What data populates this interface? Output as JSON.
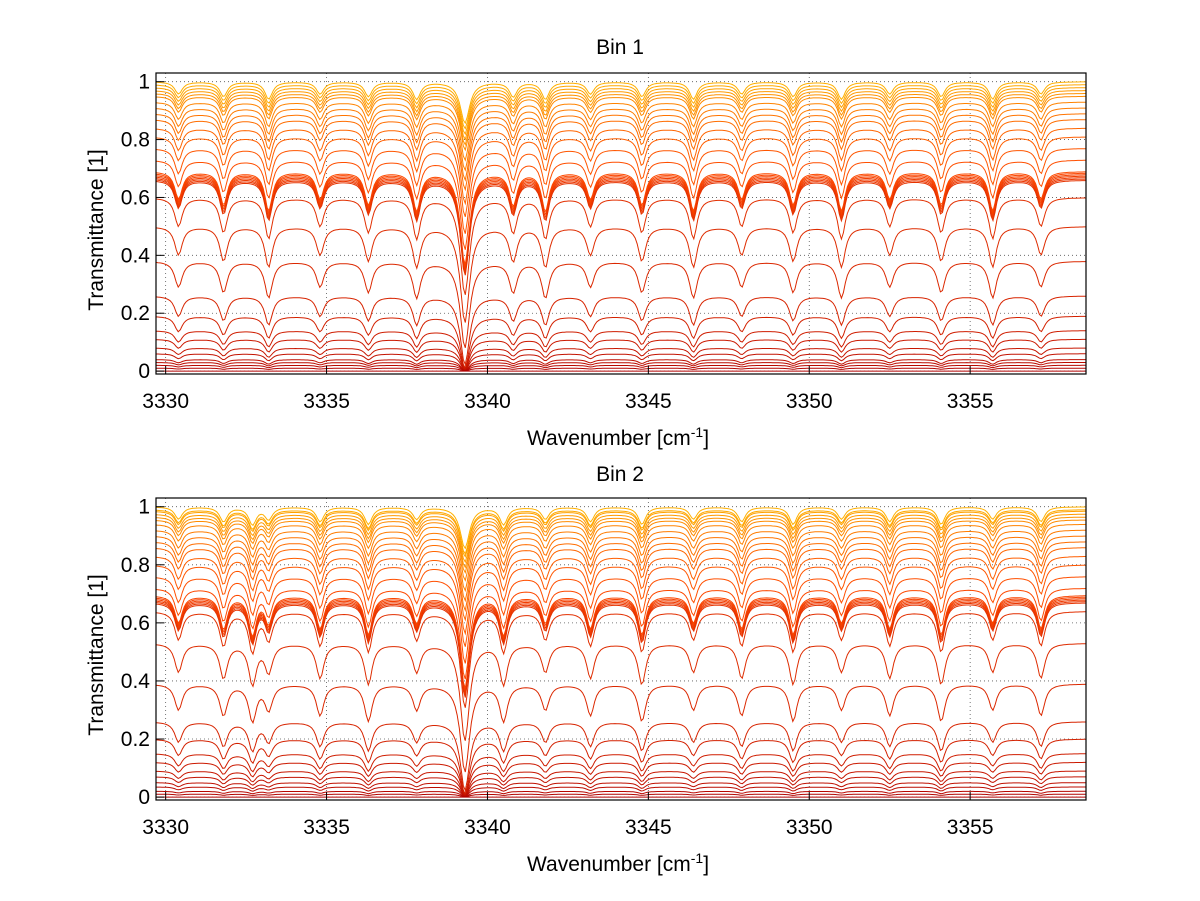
{
  "chart_data": [
    {
      "type": "line",
      "title": "Bin 1",
      "xlabel": "Wavenumber [cm",
      "xlabel_sup": "-1",
      "xlabel_end": "]",
      "ylabel": "Transmittance [1]",
      "xlim": [
        3329.7,
        3358.6
      ],
      "ylim": [
        -0.01,
        1.03
      ],
      "xticks": [
        3330,
        3335,
        3340,
        3345,
        3350,
        3355
      ],
      "yticks": [
        0,
        0.2,
        0.4,
        0.6,
        0.8,
        1
      ],
      "xtick_labels": [
        "3330",
        "3335",
        "3340",
        "3345",
        "3350",
        "3355"
      ],
      "ytick_labels": [
        "0",
        "0.2",
        "0.4",
        "0.6",
        "0.8",
        "1"
      ],
      "grid": true,
      "line_centers": [
        3330.4,
        3331.8,
        3333.2,
        3334.8,
        3336.3,
        3337.8,
        3339.3,
        3340.8,
        3341.8,
        3343.2,
        3344.8,
        3346.4,
        3347.9,
        3349.5,
        3351.0,
        3352.5,
        3354.1,
        3355.7,
        3357.2
      ],
      "series_baselines": [
        1.0,
        0.99,
        0.98,
        0.97,
        0.96,
        0.95,
        0.93,
        0.91,
        0.89,
        0.87,
        0.84,
        0.81,
        0.77,
        0.73,
        0.69,
        0.685,
        0.68,
        0.675,
        0.67,
        0.665,
        0.66,
        0.6,
        0.5,
        0.38,
        0.26,
        0.19,
        0.14,
        0.11,
        0.08,
        0.06,
        0.04,
        0.03,
        0.02,
        0.01,
        0.0
      ]
    },
    {
      "type": "line",
      "title": "Bin 2",
      "xlabel": "Wavenumber [cm",
      "xlabel_sup": "-1",
      "xlabel_end": "]",
      "ylabel": "Transmittance [1]",
      "xlim": [
        3329.7,
        3358.6
      ],
      "ylim": [
        -0.01,
        1.03
      ],
      "xticks": [
        3330,
        3335,
        3340,
        3345,
        3350,
        3355
      ],
      "yticks": [
        0,
        0.2,
        0.4,
        0.6,
        0.8,
        1
      ],
      "xtick_labels": [
        "3330",
        "3335",
        "3340",
        "3345",
        "3350",
        "3355"
      ],
      "ytick_labels": [
        "0",
        "0.2",
        "0.4",
        "0.6",
        "0.8",
        "1"
      ],
      "grid": true,
      "line_centers": [
        3330.4,
        3331.8,
        3332.7,
        3333.2,
        3334.8,
        3336.3,
        3337.8,
        3339.3,
        3340.5,
        3341.8,
        3343.2,
        3344.8,
        3346.4,
        3347.9,
        3349.5,
        3351.0,
        3352.5,
        3354.1,
        3355.7,
        3357.2
      ],
      "series_baselines": [
        1.0,
        0.99,
        0.985,
        0.975,
        0.965,
        0.955,
        0.94,
        0.92,
        0.9,
        0.88,
        0.86,
        0.83,
        0.8,
        0.76,
        0.72,
        0.695,
        0.69,
        0.685,
        0.68,
        0.675,
        0.67,
        0.64,
        0.53,
        0.39,
        0.26,
        0.2,
        0.15,
        0.12,
        0.09,
        0.07,
        0.05,
        0.035,
        0.02,
        0.01,
        0.0
      ]
    }
  ],
  "colors": {
    "light_series": "#ffb000",
    "mid_series": "#ff4a00",
    "dark_series": "#b00000",
    "grid": "#555555",
    "axes": "#000000"
  }
}
